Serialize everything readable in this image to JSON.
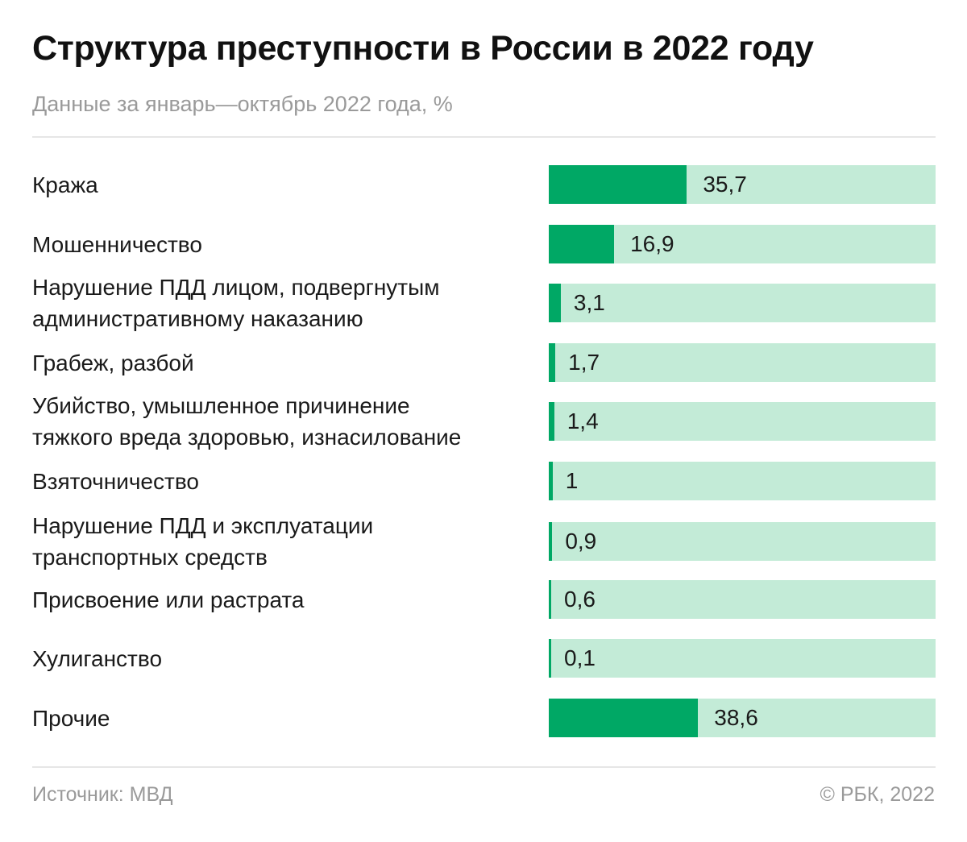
{
  "header": {
    "title": "Структура преступности в России в 2022 году",
    "subtitle": "Данные за январь—октябрь 2022 года, %"
  },
  "footer": {
    "source": "Источник: МВД",
    "copyright": "© РБК, 2022"
  },
  "colors": {
    "bar_fill": "#00a865",
    "bar_track": "#c3ebd7",
    "muted_text": "#9a9a9a"
  },
  "chart_data": {
    "type": "bar",
    "orientation": "horizontal",
    "unit": "%",
    "xlim": [
      0,
      100
    ],
    "grid": false,
    "legend": "none",
    "categories": [
      [
        "Кража"
      ],
      [
        "Мошенничество"
      ],
      [
        "Нарушение ПДД лицом, подвергнутым",
        "административному наказанию"
      ],
      [
        "Грабеж, разбой"
      ],
      [
        "Убийство, умышленное причинение",
        "тяжкого вреда здоровью, изнасилование"
      ],
      [
        "Взяточничество"
      ],
      [
        "Нарушение ПДД и эксплуатации",
        "транспортных средств"
      ],
      [
        "Присвоение или растрата"
      ],
      [
        "Хулиганство"
      ],
      [
        "Прочие"
      ]
    ],
    "values": [
      35.7,
      16.9,
      3.1,
      1.7,
      1.4,
      1,
      0.9,
      0.6,
      0.1,
      38.6
    ],
    "value_labels": [
      "35,7",
      "16,9",
      "3,1",
      "1,7",
      "1,4",
      "1",
      "0,9",
      "0,6",
      "0,1",
      "38,6"
    ]
  }
}
